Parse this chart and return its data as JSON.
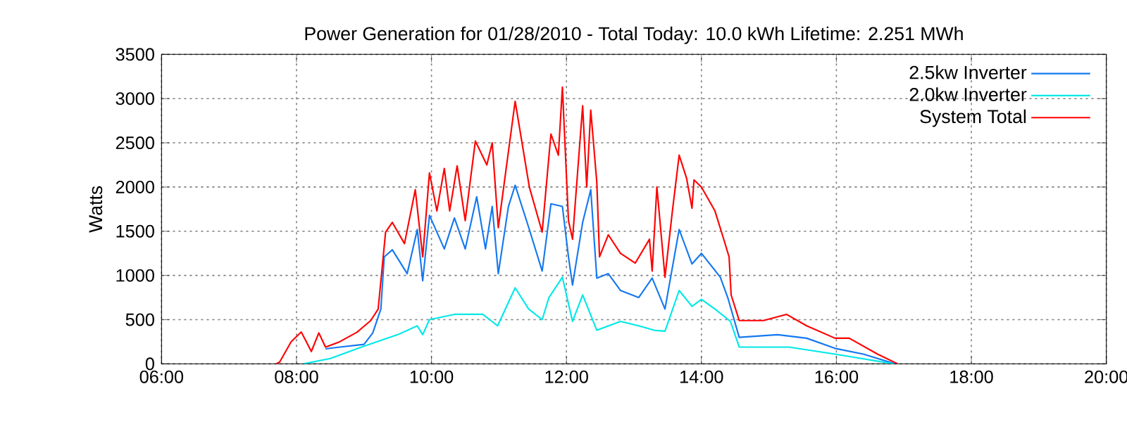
{
  "chart_data": {
    "type": "line",
    "title": "Power Generation for 01/28/2010 -  Total Today: 10.0 kWh   Lifetime: 2.251 MWh",
    "ylabel": "Watts",
    "xlim": [
      6,
      20
    ],
    "ylim": [
      0,
      3500
    ],
    "xticks": [
      {
        "value": 6,
        "label": "06:00"
      },
      {
        "value": 8,
        "label": "08:00"
      },
      {
        "value": 10,
        "label": "10:00"
      },
      {
        "value": 12,
        "label": "12:00"
      },
      {
        "value": 14,
        "label": "14:00"
      },
      {
        "value": 16,
        "label": "16:00"
      },
      {
        "value": 18,
        "label": "18:00"
      },
      {
        "value": 20,
        "label": "20:00"
      }
    ],
    "yticks": [
      0,
      500,
      1000,
      1500,
      2000,
      2500,
      3000,
      3500
    ],
    "grid": true,
    "legend": "top right",
    "marker": "none",
    "line_style": "solid",
    "series": [
      {
        "name": "2.5kw Inverter",
        "color": "#1478f0",
        "x": [
          8.43,
          8.64,
          9.0,
          9.13,
          9.25,
          9.3,
          9.42,
          9.64,
          9.79,
          9.87,
          9.97,
          10.19,
          10.34,
          10.5,
          10.67,
          10.8,
          10.9,
          10.99,
          11.14,
          11.24,
          11.45,
          11.64,
          11.77,
          11.94,
          12.03,
          12.09,
          12.24,
          12.36,
          12.45,
          12.62,
          12.8,
          13.07,
          13.27,
          13.46,
          13.67,
          13.86,
          14.0,
          14.28,
          14.39,
          14.56,
          15.13,
          15.56,
          15.98,
          16.4,
          16.87
        ],
        "values": [
          170,
          190,
          220,
          350,
          620,
          1210,
          1290,
          1020,
          1520,
          940,
          1680,
          1300,
          1650,
          1300,
          1890,
          1300,
          1780,
          1020,
          1780,
          2020,
          1520,
          1050,
          1810,
          1780,
          1210,
          890,
          1600,
          1970,
          970,
          1020,
          830,
          750,
          970,
          620,
          1520,
          1130,
          1250,
          980,
          750,
          300,
          330,
          290,
          175,
          110,
          0
        ]
      },
      {
        "name": "2.0kw Inverter",
        "color": "#00e8e8",
        "x": [
          8.1,
          8.5,
          9.0,
          9.5,
          9.79,
          9.87,
          9.97,
          10.34,
          10.76,
          10.98,
          11.24,
          11.44,
          11.64,
          11.74,
          11.94,
          12.09,
          12.24,
          12.45,
          12.8,
          13.07,
          13.3,
          13.46,
          13.67,
          13.86,
          14.0,
          14.2,
          14.43,
          14.56,
          15.3,
          15.98,
          16.85
        ],
        "values": [
          0,
          60,
          200,
          330,
          430,
          330,
          500,
          560,
          560,
          430,
          860,
          620,
          500,
          750,
          980,
          480,
          780,
          380,
          480,
          430,
          380,
          370,
          830,
          650,
          730,
          620,
          480,
          190,
          190,
          110,
          0
        ]
      },
      {
        "name": "System Total",
        "color": "#ff0000",
        "x": [
          7.7,
          7.75,
          7.92,
          8.07,
          8.22,
          8.33,
          8.43,
          8.64,
          8.9,
          9.1,
          9.21,
          9.32,
          9.42,
          9.6,
          9.76,
          9.87,
          9.97,
          10.08,
          10.19,
          10.27,
          10.38,
          10.5,
          10.65,
          10.82,
          10.9,
          10.99,
          11.14,
          11.24,
          11.45,
          11.64,
          11.77,
          11.88,
          11.94,
          12.03,
          12.09,
          12.24,
          12.3,
          12.36,
          12.45,
          12.49,
          12.62,
          12.8,
          13.02,
          13.23,
          13.27,
          13.34,
          13.46,
          13.57,
          13.67,
          13.78,
          13.86,
          13.89,
          14.0,
          14.2,
          14.31,
          14.41,
          14.44,
          14.56,
          14.92,
          15.26,
          15.56,
          15.98,
          16.19,
          16.61,
          16.91
        ],
        "values": [
          0,
          20,
          250,
          360,
          140,
          350,
          190,
          250,
          360,
          490,
          620,
          1490,
          1600,
          1360,
          1970,
          1210,
          2160,
          1730,
          2210,
          1730,
          2240,
          1620,
          2520,
          2250,
          2500,
          1540,
          2400,
          2970,
          2000,
          1490,
          2600,
          2360,
          3130,
          1620,
          1410,
          2920,
          2000,
          2870,
          2050,
          1210,
          1460,
          1250,
          1140,
          1410,
          1050,
          2000,
          980,
          1730,
          2360,
          2100,
          1760,
          2080,
          2000,
          1730,
          1460,
          1210,
          780,
          490,
          490,
          560,
          430,
          290,
          290,
          110,
          0
        ]
      }
    ]
  }
}
